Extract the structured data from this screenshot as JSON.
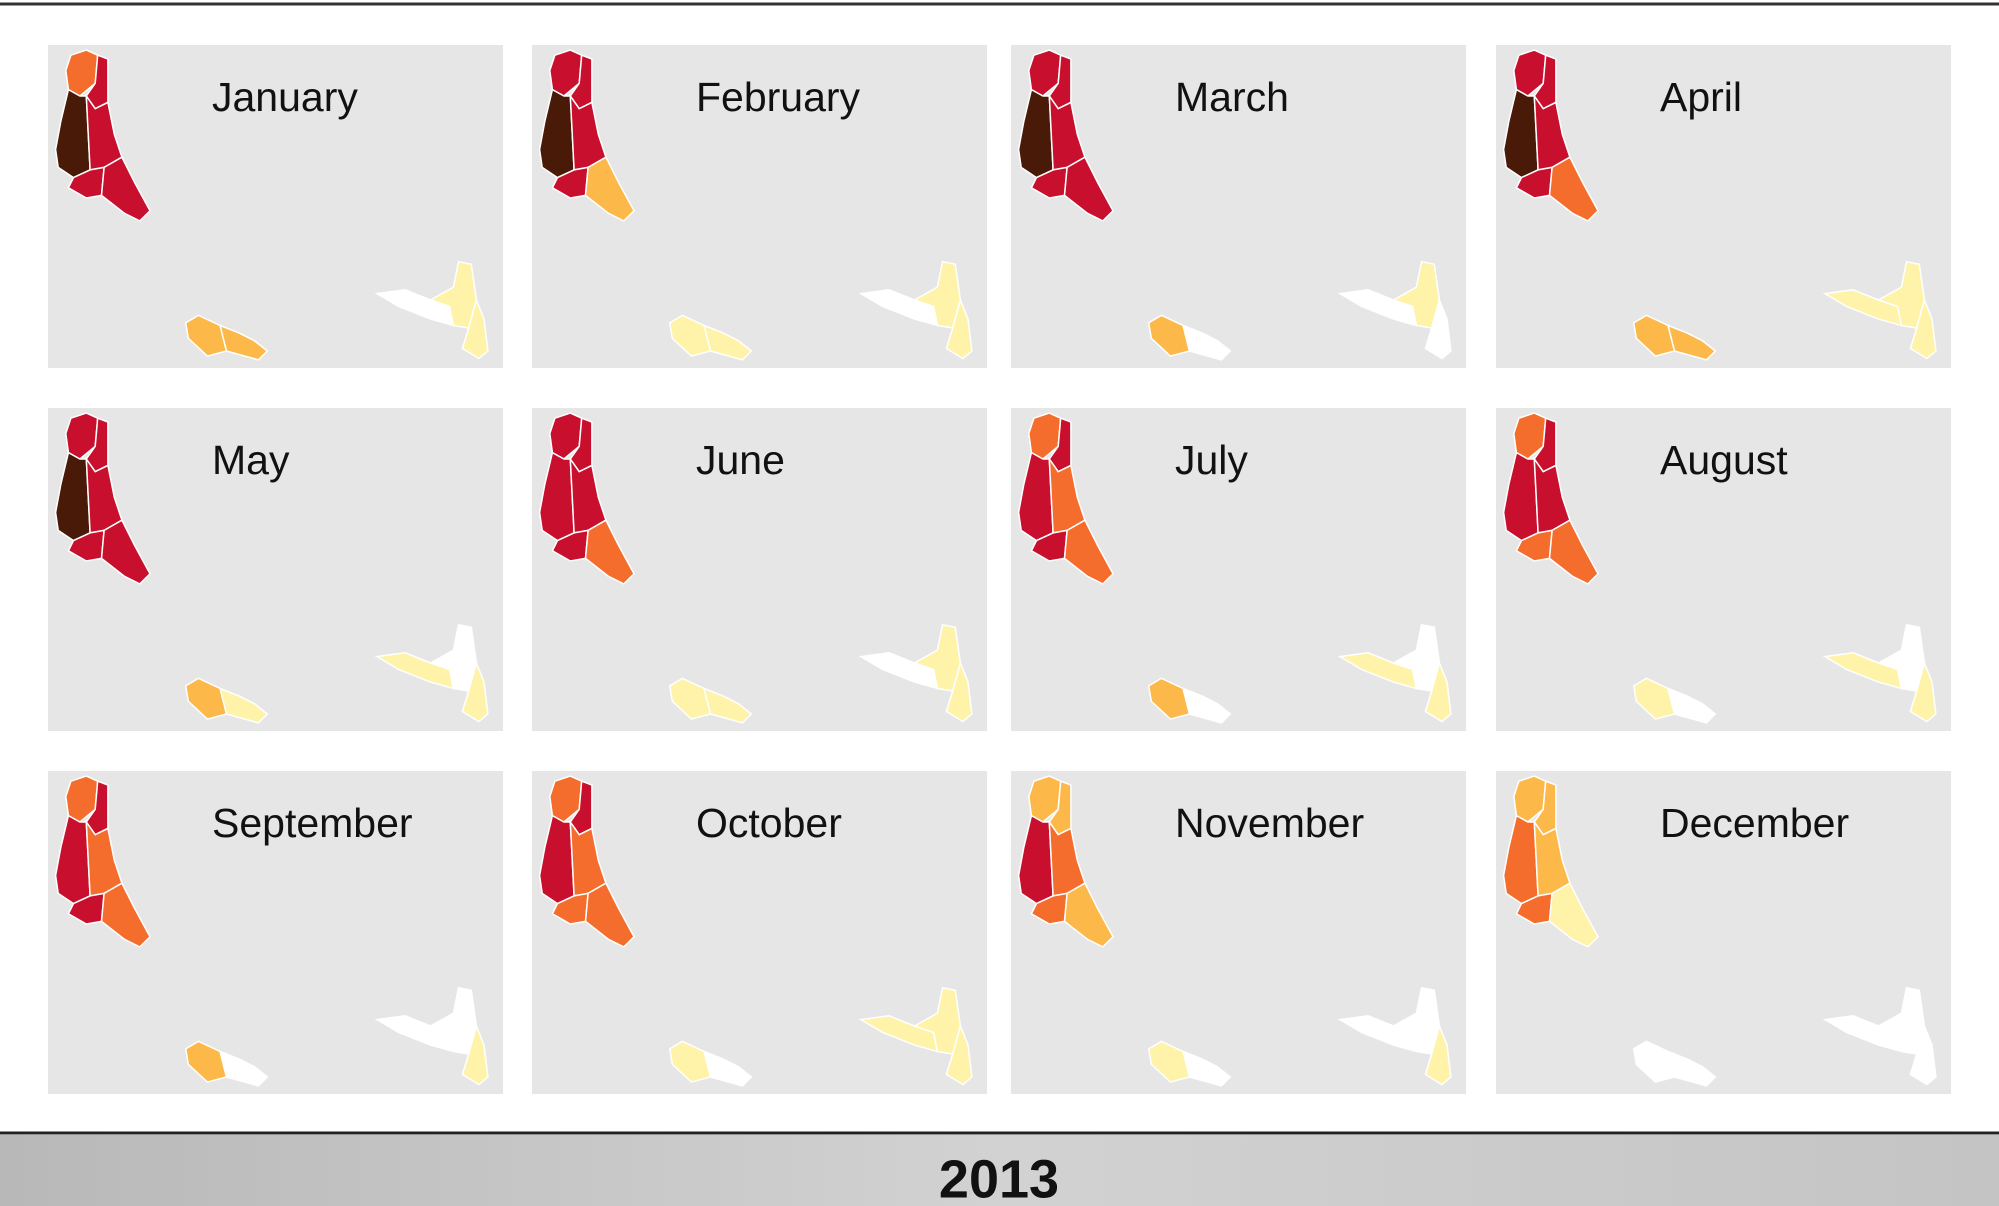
{
  "panels": [
    {
      "title": "January",
      "region_colors": [
        "#f46d2c",
        "#c8102e",
        "#4a1a08",
        "#c8102e",
        "#c8102e",
        "#c8102e",
        "#fdb84a",
        "#fdb84a",
        "#ffffff",
        "#fef3a8",
        "#fef3a8"
      ]
    },
    {
      "title": "February",
      "region_colors": [
        "#c8102e",
        "#c8102e",
        "#4a1a08",
        "#c8102e",
        "#c8102e",
        "#fdb84a",
        "#fef3a8",
        "#fef3a8",
        "#ffffff",
        "#fef3a8",
        "#fef3a8"
      ]
    },
    {
      "title": "March",
      "region_colors": [
        "#c8102e",
        "#c8102e",
        "#4a1a08",
        "#c8102e",
        "#c8102e",
        "#c8102e",
        "#fdb84a",
        "#ffffff",
        "#ffffff",
        "#fef3a8",
        "#ffffff"
      ]
    },
    {
      "title": "April",
      "region_colors": [
        "#c8102e",
        "#c8102e",
        "#4a1a08",
        "#c8102e",
        "#c8102e",
        "#f46d2c",
        "#fdb84a",
        "#fdb84a",
        "#fef3a8",
        "#fef3a8",
        "#fef3a8"
      ]
    },
    {
      "title": "May",
      "region_colors": [
        "#c8102e",
        "#c8102e",
        "#4a1a08",
        "#c8102e",
        "#c8102e",
        "#c8102e",
        "#fdb84a",
        "#fef3a8",
        "#fef3a8",
        "#ffffff",
        "#fef3a8"
      ]
    },
    {
      "title": "June",
      "region_colors": [
        "#c8102e",
        "#c8102e",
        "#c8102e",
        "#c8102e",
        "#c8102e",
        "#f46d2c",
        "#fef3a8",
        "#fef3a8",
        "#ffffff",
        "#fef3a8",
        "#fef3a8"
      ]
    },
    {
      "title": "July",
      "region_colors": [
        "#f46d2c",
        "#c8102e",
        "#c8102e",
        "#f46d2c",
        "#c8102e",
        "#f46d2c",
        "#fdb84a",
        "#ffffff",
        "#fef3a8",
        "#ffffff",
        "#fef3a8"
      ]
    },
    {
      "title": "August",
      "region_colors": [
        "#f46d2c",
        "#c8102e",
        "#c8102e",
        "#c8102e",
        "#f46d2c",
        "#f46d2c",
        "#fef3a8",
        "#ffffff",
        "#fef3a8",
        "#ffffff",
        "#fef3a8"
      ]
    },
    {
      "title": "September",
      "region_colors": [
        "#f46d2c",
        "#c8102e",
        "#c8102e",
        "#f46d2c",
        "#c8102e",
        "#f46d2c",
        "#fdb84a",
        "#ffffff",
        "#ffffff",
        "#ffffff",
        "#fef3a8"
      ]
    },
    {
      "title": "October",
      "region_colors": [
        "#f46d2c",
        "#c8102e",
        "#c8102e",
        "#f46d2c",
        "#f46d2c",
        "#f46d2c",
        "#fef3a8",
        "#ffffff",
        "#fef3a8",
        "#fef3a8",
        "#fef3a8"
      ]
    },
    {
      "title": "November",
      "region_colors": [
        "#fdb84a",
        "#fdb84a",
        "#c8102e",
        "#f46d2c",
        "#f46d2c",
        "#fdb84a",
        "#fef3a8",
        "#ffffff",
        "#ffffff",
        "#ffffff",
        "#fef3a8"
      ]
    },
    {
      "title": "December",
      "region_colors": [
        "#fdb84a",
        "#fdb84a",
        "#f46d2c",
        "#fdb84a",
        "#f46d2c",
        "#fef3a8",
        "#ffffff",
        "#ffffff",
        "#ffffff",
        "#ffffff",
        "#ffffff"
      ]
    }
  ],
  "footer": {
    "year": "2013"
  }
}
